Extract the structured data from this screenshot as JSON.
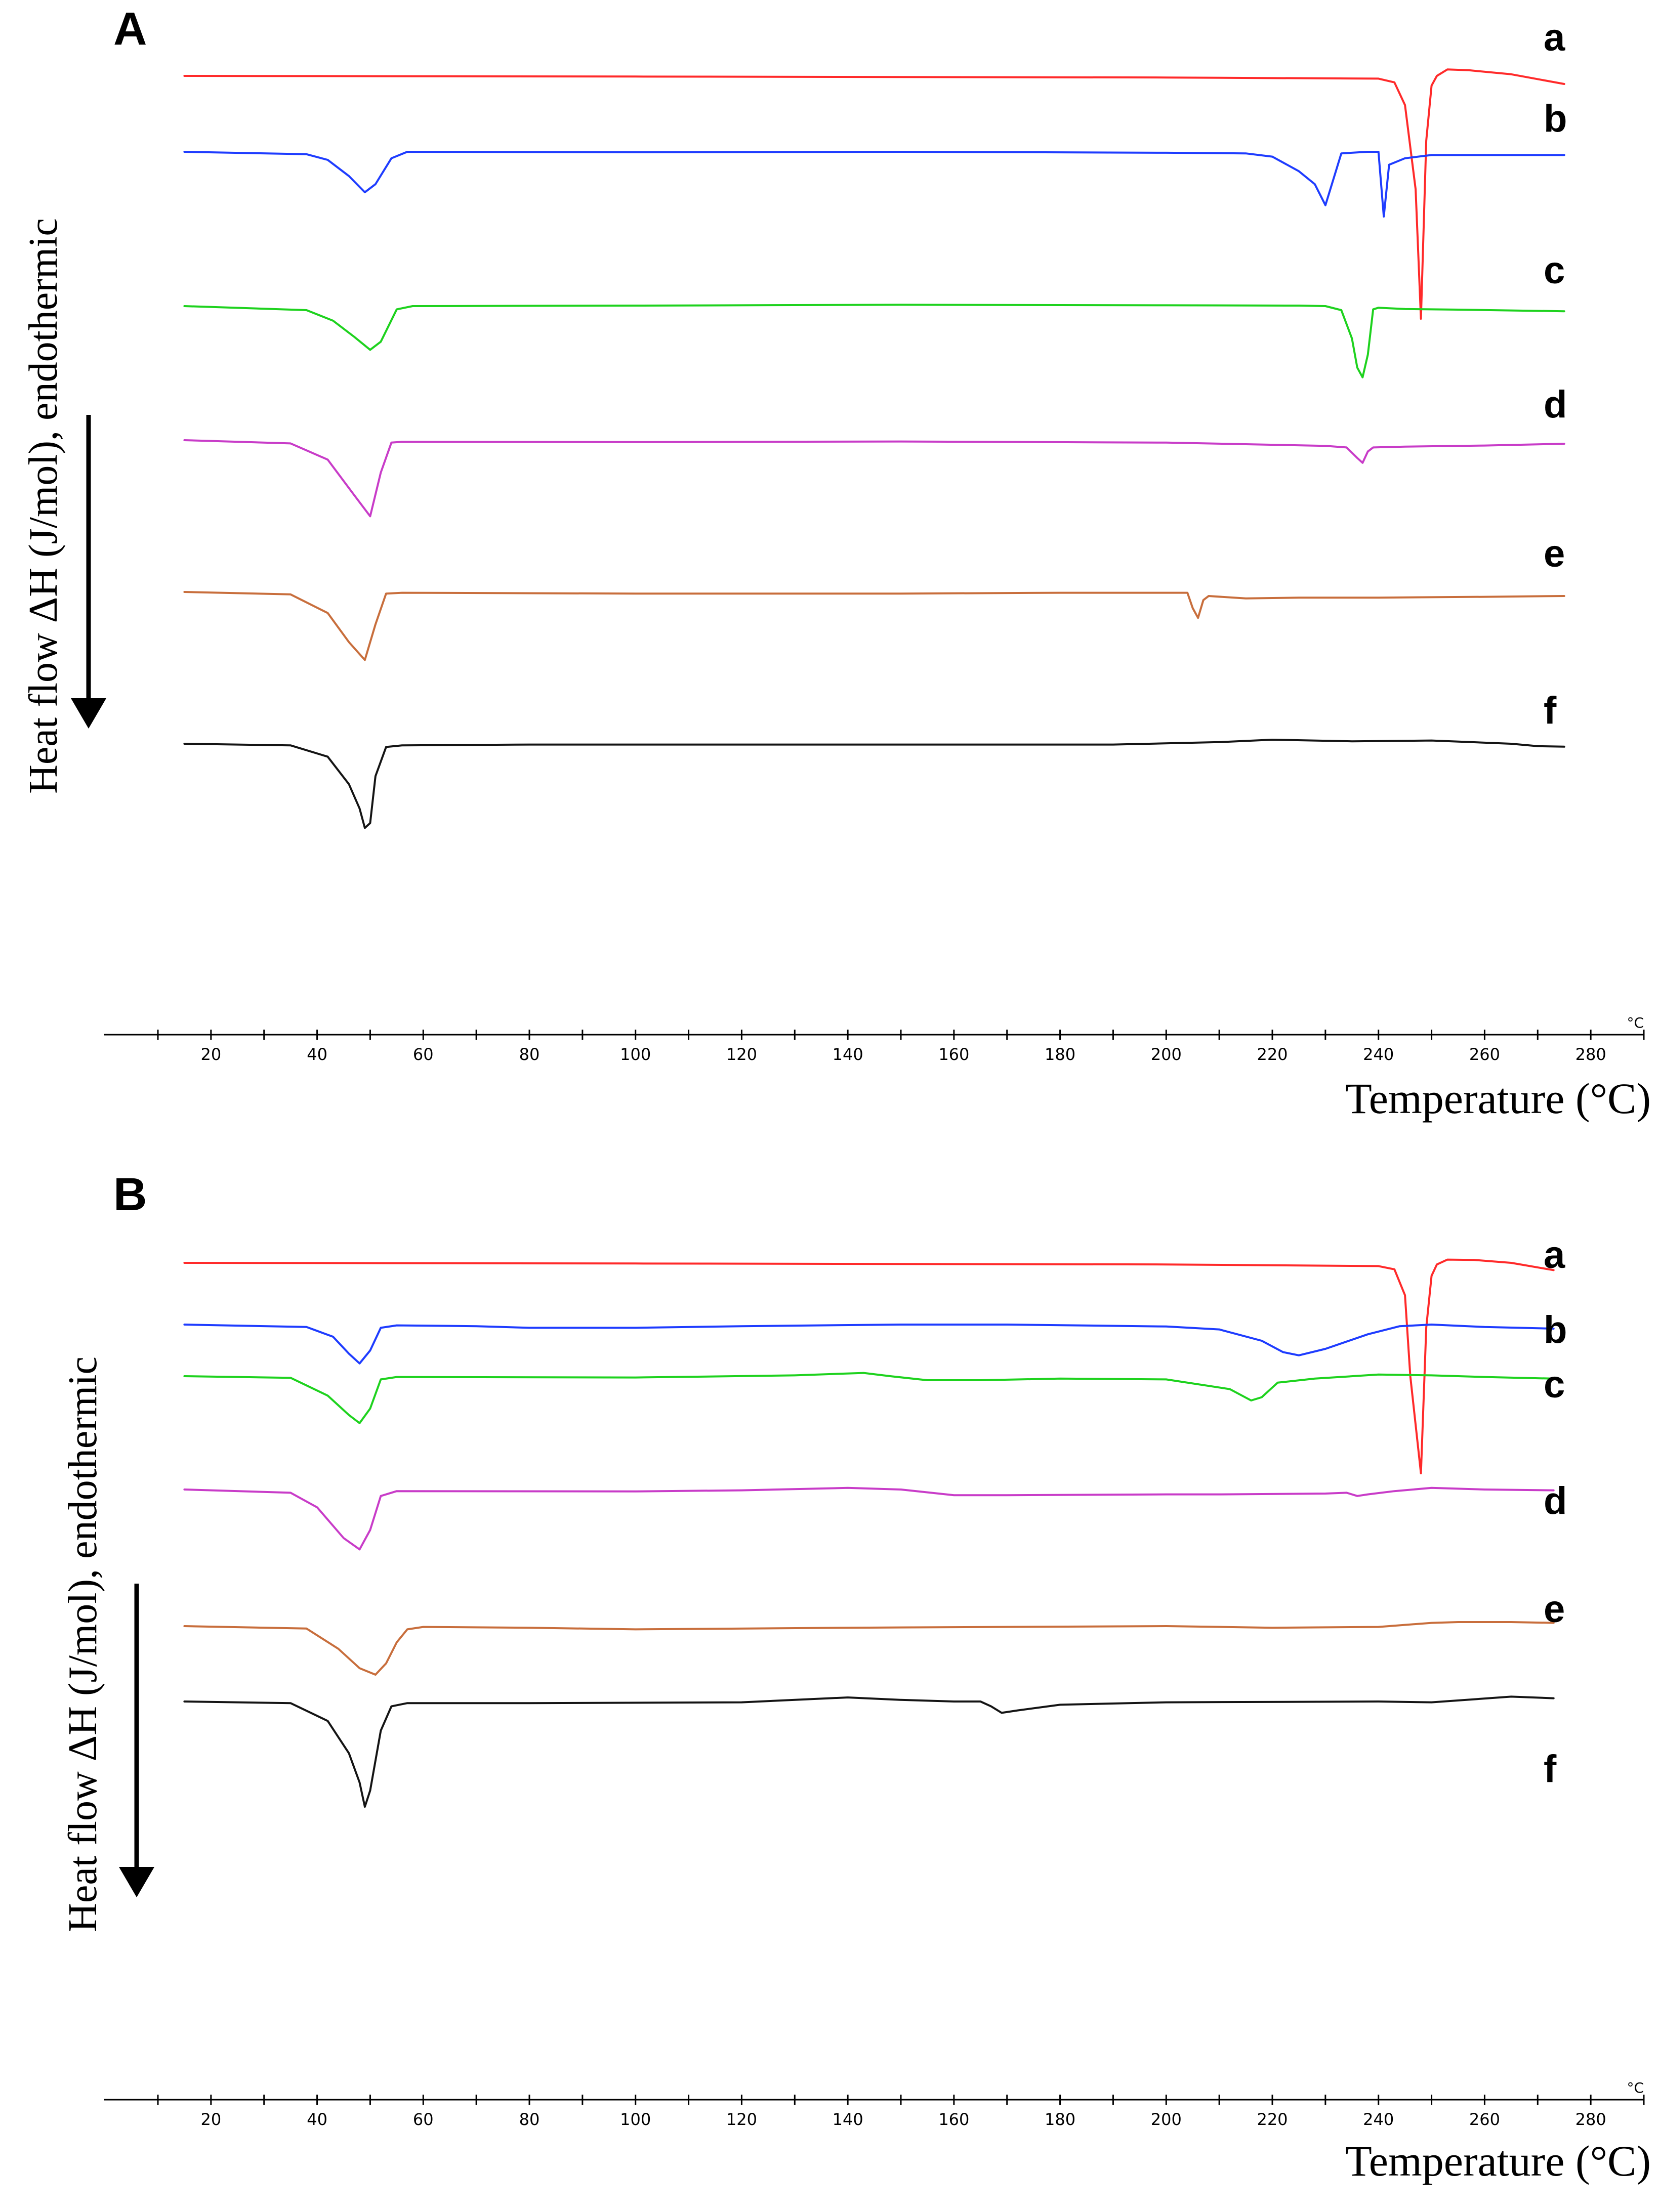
{
  "chart_data": [
    {
      "panel": "A",
      "type": "line",
      "title": "",
      "ylabel": "Heat flow ΔH (J/mol), endothermic",
      "xlabel": "Temperature (°C)",
      "x_unit_tick": "°C",
      "xlim": [
        10,
        290
      ],
      "xticks": [
        "20",
        "40",
        "60",
        "80",
        "100",
        "120",
        "140",
        "160",
        "180",
        "200",
        "220",
        "240",
        "260",
        "280"
      ],
      "series": [
        {
          "name": "a",
          "color": "#ff2a2a",
          "offset": 0,
          "points": [
            [
              15,
              0
            ],
            [
              100,
              4
            ],
            [
              200,
              10
            ],
            [
              240,
              17
            ],
            [
              243,
              40
            ],
            [
              245,
              180
            ],
            [
              247,
              700
            ],
            [
              248,
              1500
            ],
            [
              249,
              400
            ],
            [
              250,
              60
            ],
            [
              251,
              0
            ],
            [
              253,
              -40
            ],
            [
              257,
              -35
            ],
            [
              265,
              -10
            ],
            [
              275,
              50
            ]
          ]
        },
        {
          "name": "b",
          "color": "#1e3cff",
          "offset": 0,
          "points": [
            [
              15,
              0
            ],
            [
              38,
              15
            ],
            [
              42,
              50
            ],
            [
              46,
              150
            ],
            [
              49,
              250
            ],
            [
              51,
              200
            ],
            [
              54,
              40
            ],
            [
              57,
              0
            ],
            [
              100,
              3
            ],
            [
              150,
              0
            ],
            [
              200,
              6
            ],
            [
              215,
              10
            ],
            [
              220,
              30
            ],
            [
              225,
              120
            ],
            [
              228,
              200
            ],
            [
              230,
              330
            ],
            [
              233,
              10
            ],
            [
              238,
              0
            ],
            [
              240,
              0
            ],
            [
              241,
              400
            ],
            [
              242,
              80
            ],
            [
              245,
              40
            ],
            [
              250,
              20
            ],
            [
              260,
              20
            ],
            [
              275,
              20
            ]
          ]
        },
        {
          "name": "c",
          "color": "#1ed21e",
          "offset": 0,
          "points": [
            [
              15,
              0
            ],
            [
              38,
              25
            ],
            [
              43,
              90
            ],
            [
              47,
              190
            ],
            [
              50,
              270
            ],
            [
              52,
              220
            ],
            [
              55,
              20
            ],
            [
              58,
              0
            ],
            [
              100,
              -3
            ],
            [
              150,
              -8
            ],
            [
              200,
              -5
            ],
            [
              225,
              -3
            ],
            [
              230,
              0
            ],
            [
              233,
              25
            ],
            [
              235,
              200
            ],
            [
              236,
              380
            ],
            [
              237,
              440
            ],
            [
              238,
              300
            ],
            [
              239,
              20
            ],
            [
              240,
              10
            ],
            [
              245,
              18
            ],
            [
              255,
              22
            ],
            [
              275,
              32
            ]
          ]
        },
        {
          "name": "d",
          "color": "#c83cc8",
          "offset": 0,
          "points": [
            [
              15,
              0
            ],
            [
              35,
              20
            ],
            [
              42,
              120
            ],
            [
              47,
              340
            ],
            [
              50,
              470
            ],
            [
              52,
              200
            ],
            [
              54,
              15
            ],
            [
              56,
              10
            ],
            [
              100,
              12
            ],
            [
              150,
              8
            ],
            [
              200,
              15
            ],
            [
              230,
              35
            ],
            [
              234,
              45
            ],
            [
              236,
              110
            ],
            [
              237,
              140
            ],
            [
              238,
              70
            ],
            [
              239,
              45
            ],
            [
              245,
              40
            ],
            [
              260,
              33
            ],
            [
              275,
              22
            ]
          ]
        },
        {
          "name": "e",
          "color": "#c86e3c",
          "offset": 0,
          "points": [
            [
              15,
              0
            ],
            [
              35,
              15
            ],
            [
              42,
              130
            ],
            [
              46,
              310
            ],
            [
              49,
              420
            ],
            [
              51,
              200
            ],
            [
              53,
              10
            ],
            [
              56,
              5
            ],
            [
              100,
              10
            ],
            [
              150,
              10
            ],
            [
              180,
              5
            ],
            [
              204,
              5
            ],
            [
              205,
              100
            ],
            [
              206,
              160
            ],
            [
              207,
              50
            ],
            [
              208,
              25
            ],
            [
              215,
              40
            ],
            [
              225,
              35
            ],
            [
              240,
              35
            ],
            [
              260,
              30
            ],
            [
              275,
              25
            ]
          ]
        },
        {
          "name": "f",
          "color": "#141414",
          "offset": 0,
          "points": [
            [
              15,
              0
            ],
            [
              35,
              10
            ],
            [
              42,
              80
            ],
            [
              46,
              250
            ],
            [
              48,
              400
            ],
            [
              49,
              520
            ],
            [
              50,
              490
            ],
            [
              51,
              200
            ],
            [
              53,
              20
            ],
            [
              56,
              10
            ],
            [
              80,
              5
            ],
            [
              120,
              5
            ],
            [
              160,
              5
            ],
            [
              190,
              5
            ],
            [
              210,
              -10
            ],
            [
              220,
              -25
            ],
            [
              235,
              -15
            ],
            [
              250,
              -20
            ],
            [
              265,
              0
            ],
            [
              270,
              15
            ],
            [
              275,
              18
            ]
          ]
        }
      ],
      "series_labels": [
        "a",
        "b",
        "c",
        "d",
        "e",
        "f"
      ]
    },
    {
      "panel": "B",
      "type": "line",
      "title": "",
      "ylabel": "Heat flow ΔH (J/mol), endothermic",
      "xlabel": "Temperature (°C)",
      "x_unit_tick": "°C",
      "xlim": [
        10,
        290
      ],
      "xticks": [
        "20",
        "40",
        "60",
        "80",
        "100",
        "120",
        "140",
        "160",
        "180",
        "200",
        "220",
        "240",
        "260",
        "280"
      ],
      "series": [
        {
          "name": "a",
          "color": "#ff2a2a",
          "offset": 0,
          "points": [
            [
              15,
              0
            ],
            [
              100,
              4
            ],
            [
              200,
              10
            ],
            [
              240,
              20
            ],
            [
              243,
              40
            ],
            [
              245,
              200
            ],
            [
              246,
              700
            ],
            [
              248,
              1300
            ],
            [
              249,
              400
            ],
            [
              250,
              80
            ],
            [
              251,
              10
            ],
            [
              253,
              -20
            ],
            [
              258,
              -18
            ],
            [
              265,
              0
            ],
            [
              273,
              45
            ]
          ]
        },
        {
          "name": "b",
          "color": "#1e3cff",
          "offset": 0,
          "points": [
            [
              15,
              0
            ],
            [
              38,
              15
            ],
            [
              43,
              75
            ],
            [
              46,
              180
            ],
            [
              48,
              240
            ],
            [
              50,
              160
            ],
            [
              52,
              20
            ],
            [
              55,
              5
            ],
            [
              70,
              10
            ],
            [
              80,
              20
            ],
            [
              100,
              20
            ],
            [
              120,
              10
            ],
            [
              150,
              0
            ],
            [
              170,
              0
            ],
            [
              200,
              12
            ],
            [
              210,
              30
            ],
            [
              218,
              100
            ],
            [
              222,
              170
            ],
            [
              225,
              190
            ],
            [
              230,
              150
            ],
            [
              238,
              60
            ],
            [
              244,
              10
            ],
            [
              250,
              0
            ],
            [
              260,
              15
            ],
            [
              273,
              25
            ]
          ]
        },
        {
          "name": "c",
          "color": "#1ed21e",
          "offset": 0,
          "points": [
            [
              15,
              0
            ],
            [
              35,
              10
            ],
            [
              42,
              120
            ],
            [
              46,
              240
            ],
            [
              48,
              290
            ],
            [
              50,
              200
            ],
            [
              52,
              20
            ],
            [
              55,
              5
            ],
            [
              100,
              8
            ],
            [
              130,
              -5
            ],
            [
              143,
              -20
            ],
            [
              148,
              0
            ],
            [
              155,
              25
            ],
            [
              165,
              25
            ],
            [
              180,
              15
            ],
            [
              200,
              20
            ],
            [
              212,
              80
            ],
            [
              216,
              150
            ],
            [
              218,
              130
            ],
            [
              221,
              40
            ],
            [
              228,
              15
            ],
            [
              240,
              -10
            ],
            [
              250,
              -5
            ],
            [
              260,
              5
            ],
            [
              273,
              15
            ]
          ]
        },
        {
          "name": "d",
          "color": "#c83cc8",
          "offset": 0,
          "points": [
            [
              15,
              0
            ],
            [
              35,
              20
            ],
            [
              40,
              110
            ],
            [
              45,
              300
            ],
            [
              48,
              370
            ],
            [
              50,
              250
            ],
            [
              52,
              40
            ],
            [
              55,
              10
            ],
            [
              100,
              12
            ],
            [
              120,
              5
            ],
            [
              140,
              -10
            ],
            [
              150,
              0
            ],
            [
              160,
              35
            ],
            [
              170,
              35
            ],
            [
              200,
              30
            ],
            [
              210,
              30
            ],
            [
              230,
              25
            ],
            [
              234,
              20
            ],
            [
              236,
              40
            ],
            [
              238,
              30
            ],
            [
              243,
              10
            ],
            [
              250,
              -10
            ],
            [
              260,
              0
            ],
            [
              273,
              5
            ]
          ]
        },
        {
          "name": "e",
          "color": "#c86e3c",
          "offset": 0,
          "points": [
            [
              15,
              0
            ],
            [
              38,
              15
            ],
            [
              44,
              140
            ],
            [
              48,
              260
            ],
            [
              51,
              300
            ],
            [
              53,
              230
            ],
            [
              55,
              100
            ],
            [
              57,
              20
            ],
            [
              60,
              5
            ],
            [
              80,
              10
            ],
            [
              100,
              20
            ],
            [
              140,
              10
            ],
            [
              200,
              0
            ],
            [
              220,
              10
            ],
            [
              240,
              5
            ],
            [
              250,
              -20
            ],
            [
              255,
              -25
            ],
            [
              265,
              -25
            ],
            [
              273,
              -20
            ]
          ]
        },
        {
          "name": "f",
          "color": "#141414",
          "offset": 0,
          "points": [
            [
              15,
              0
            ],
            [
              35,
              10
            ],
            [
              42,
              120
            ],
            [
              46,
              320
            ],
            [
              48,
              500
            ],
            [
              49,
              650
            ],
            [
              50,
              550
            ],
            [
              52,
              180
            ],
            [
              54,
              30
            ],
            [
              57,
              10
            ],
            [
              80,
              10
            ],
            [
              120,
              5
            ],
            [
              130,
              -10
            ],
            [
              140,
              -25
            ],
            [
              150,
              -10
            ],
            [
              160,
              0
            ],
            [
              165,
              0
            ],
            [
              167,
              30
            ],
            [
              169,
              70
            ],
            [
              172,
              55
            ],
            [
              180,
              20
            ],
            [
              200,
              5
            ],
            [
              240,
              0
            ],
            [
              250,
              5
            ],
            [
              265,
              -30
            ],
            [
              273,
              -20
            ]
          ]
        }
      ],
      "series_labels": [
        "a",
        "b",
        "c",
        "d",
        "e",
        "f"
      ]
    }
  ]
}
